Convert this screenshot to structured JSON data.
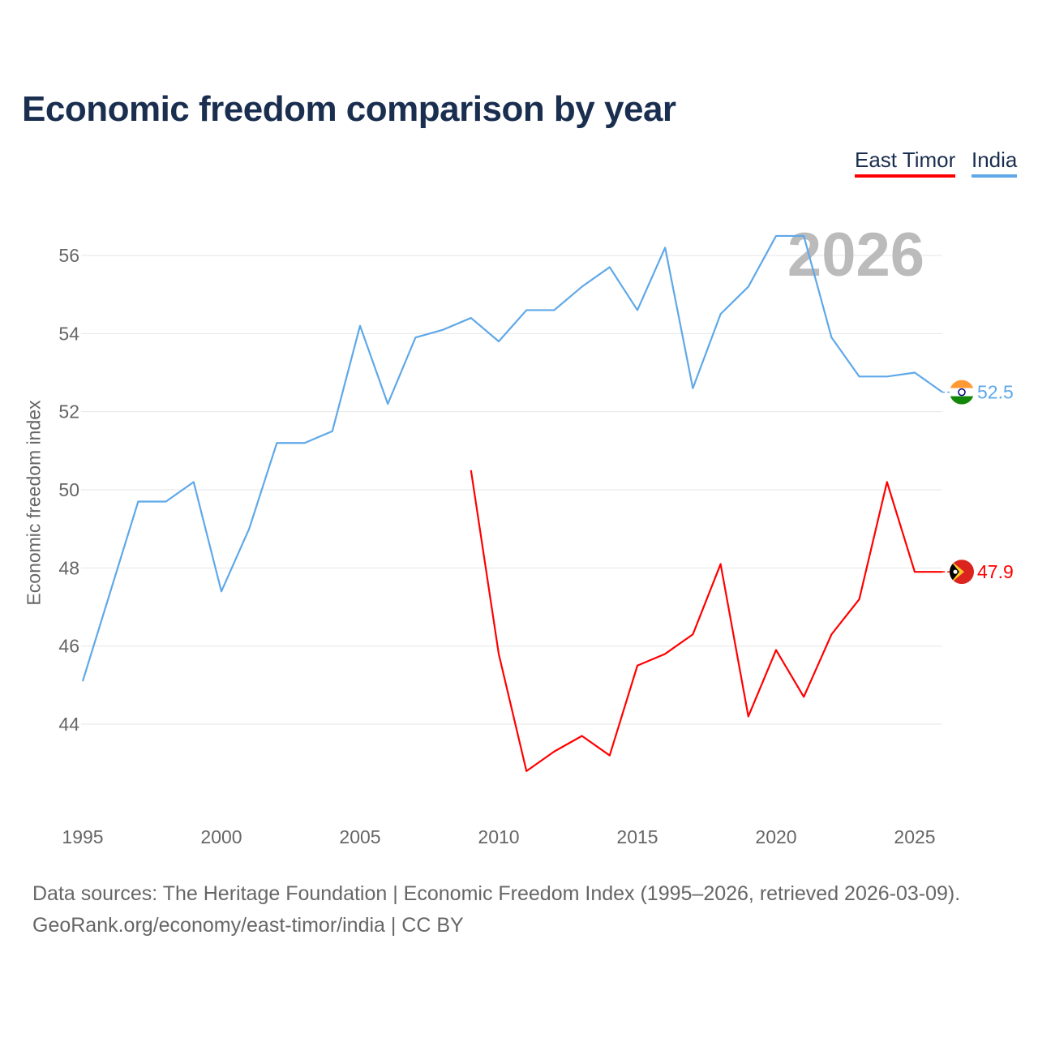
{
  "title": "Economic freedom comparison by year",
  "legend": [
    {
      "name": "East Timor",
      "color": "#ff0000"
    },
    {
      "name": "India",
      "color": "#5fa8e8"
    }
  ],
  "chart_data": {
    "type": "line",
    "title": "Economic freedom comparison by year",
    "xlabel": "",
    "ylabel": "Economic freedom index",
    "xlim": [
      1995,
      2026
    ],
    "ylim": [
      42,
      57.5
    ],
    "x_ticks": [
      1995,
      2000,
      2005,
      2010,
      2015,
      2020,
      2025
    ],
    "y_ticks": [
      44,
      46,
      48,
      50,
      52,
      54,
      56
    ],
    "grid": true,
    "legend_position": "top-right",
    "watermark_year": "2026",
    "series": [
      {
        "name": "India",
        "color": "#5fa8e8",
        "end_label": "52.5",
        "flag": "india-flag-icon",
        "x": [
          1995,
          1996,
          1997,
          1998,
          1999,
          2000,
          2001,
          2002,
          2003,
          2004,
          2005,
          2006,
          2007,
          2008,
          2009,
          2010,
          2011,
          2012,
          2013,
          2014,
          2015,
          2016,
          2017,
          2018,
          2019,
          2020,
          2021,
          2022,
          2023,
          2024,
          2025,
          2026
        ],
        "values": [
          45.1,
          47.4,
          49.7,
          49.7,
          50.2,
          47.4,
          49.0,
          51.2,
          51.2,
          51.5,
          54.2,
          52.2,
          53.9,
          54.1,
          54.4,
          53.8,
          54.6,
          54.6,
          55.2,
          55.7,
          54.6,
          56.2,
          52.6,
          54.5,
          55.2,
          56.5,
          56.5,
          53.9,
          52.9,
          52.9,
          53.0,
          52.5
        ]
      },
      {
        "name": "East Timor",
        "color": "#ff0000",
        "end_label": "47.9",
        "flag": "east-timor-flag-icon",
        "x": [
          2009,
          2010,
          2011,
          2012,
          2013,
          2014,
          2015,
          2016,
          2017,
          2018,
          2019,
          2020,
          2021,
          2022,
          2023,
          2024,
          2025,
          2026
        ],
        "values": [
          50.5,
          45.8,
          42.8,
          43.3,
          43.7,
          43.2,
          45.5,
          45.8,
          46.3,
          48.1,
          44.2,
          45.9,
          44.7,
          46.3,
          47.2,
          50.2,
          47.9,
          47.9
        ]
      }
    ]
  },
  "footer": {
    "line1": "Data sources: The Heritage Foundation | Economic Freedom Index (1995–2026, retrieved 2026-03-09).",
    "line2": "GeoRank.org/economy/east-timor/india | CC BY"
  }
}
